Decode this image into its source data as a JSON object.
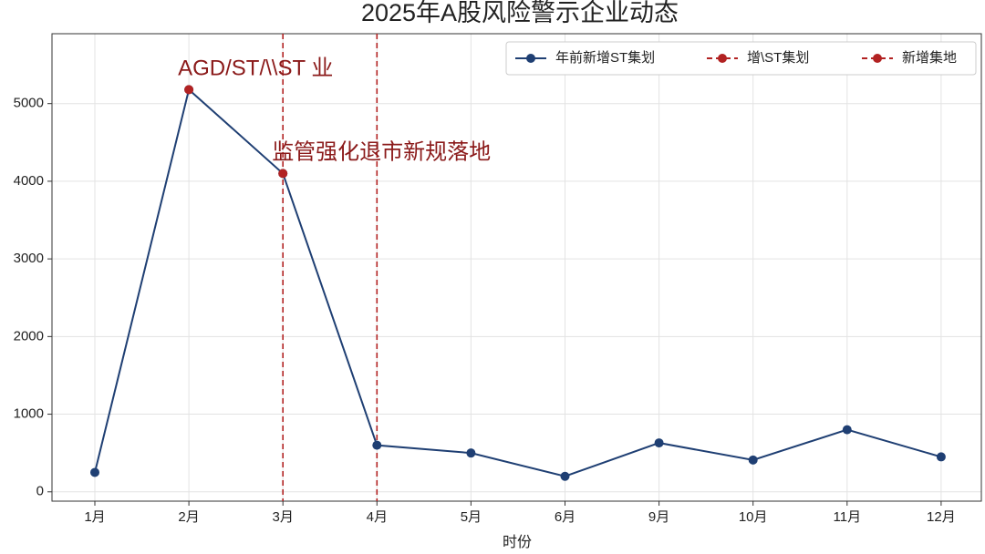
{
  "chart_data": {
    "type": "line",
    "title": "2025年A股风险警示企业动态",
    "x_label": "时份",
    "categories": [
      "1月",
      "2月",
      "3月",
      "4月",
      "5月",
      "6月",
      "9月",
      "10月",
      "11月",
      "12月"
    ],
    "series": [
      {
        "name": "年前新增ST集划",
        "color": "#1f3f73",
        "linestyle": "solid",
        "values": [
          250,
          5180,
          4100,
          600,
          500,
          200,
          630,
          410,
          800,
          450
        ]
      },
      {
        "name": "增\\ST集划",
        "color": "#b22222",
        "linestyle": "dashed",
        "values": [
          null,
          5180,
          null,
          null,
          null,
          null,
          null,
          null,
          null,
          null
        ]
      },
      {
        "name": "新增集地",
        "color": "#b22222",
        "linestyle": "dashed",
        "values": [
          null,
          null,
          4100,
          null,
          null,
          null,
          null,
          null,
          null,
          null
        ]
      }
    ],
    "vlines": [
      {
        "x": "3月",
        "color": "#b22222"
      },
      {
        "x": "4月",
        "color": "#b22222"
      }
    ],
    "annotations": [
      {
        "text": "AGD/ST/\\\\ST 业",
        "x": "2月",
        "color": "#8b1a1a"
      },
      {
        "text": "监管强化退市新规落地",
        "x": "3月",
        "color": "#8b1a1a"
      }
    ],
    "ylim": [
      -120,
      5900
    ],
    "yticks": [
      0,
      1000,
      2000,
      3000,
      4000,
      5000
    ],
    "grid": true,
    "legend": "upper right"
  }
}
